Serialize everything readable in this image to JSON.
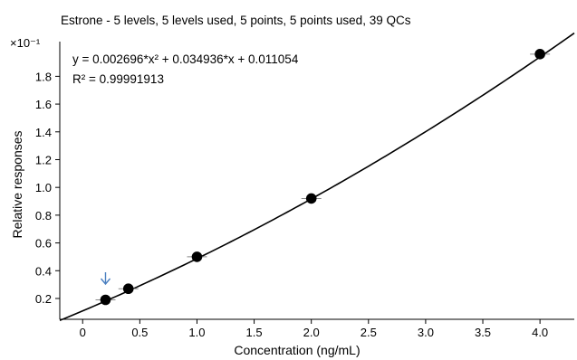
{
  "chart_data": {
    "type": "scatter",
    "title": "Estrone - 5 levels, 5 levels used, 5 points, 5 points used, 39 QCs",
    "xlabel": "Concentration (ng/mL)",
    "ylabel": "Relative responses",
    "y_multiplier": "×10⁻¹",
    "equation": "y = 0.002696*x² + 0.034936*x + 0.011054",
    "r_squared": "R² = 0.99991913",
    "xlim": [
      -0.2,
      4.3
    ],
    "ylim": [
      0.05,
      2.05
    ],
    "x_ticks": [
      "0",
      "0.5",
      "1.0",
      "1.5",
      "2.0",
      "2.5",
      "3.0",
      "3.5",
      "4.0"
    ],
    "y_ticks": [
      "0.2",
      "0.4",
      "0.6",
      "0.8",
      "1.0",
      "1.2",
      "1.4",
      "1.6",
      "1.8"
    ],
    "fit": {
      "a": 0.002696,
      "b": 0.034936,
      "c": 0.011054,
      "x_from": -0.2,
      "x_to": 4.3
    },
    "points": [
      {
        "x": 0.2,
        "y": 0.19
      },
      {
        "x": 0.4,
        "y": 0.27
      },
      {
        "x": 1.0,
        "y": 0.5
      },
      {
        "x": 2.0,
        "y": 0.92
      },
      {
        "x": 4.0,
        "y": 1.96
      }
    ],
    "annotation_arrow_x": 0.2,
    "colors": {
      "point": "#000000",
      "line": "#000000",
      "arrow": "#4a7fc0",
      "axis": "#000000"
    }
  }
}
